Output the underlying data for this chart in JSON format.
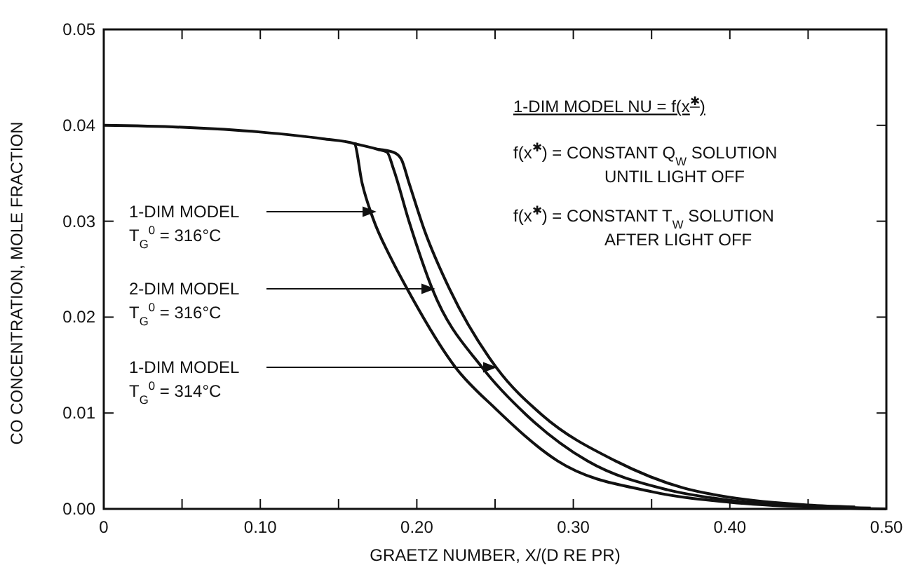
{
  "chart_data": {
    "type": "line",
    "xlabel": "GRAETZ NUMBER, X/(D RE PR)",
    "ylabel": "CO CONCENTRATION, MOLE FRACTION",
    "xlim": [
      0,
      0.5
    ],
    "ylim": [
      0,
      0.05
    ],
    "xticks": [
      {
        "value": 0,
        "label": "0"
      },
      {
        "value": 0.05,
        "label": null
      },
      {
        "value": 0.1,
        "label": "0.10"
      },
      {
        "value": 0.15,
        "label": null
      },
      {
        "value": 0.2,
        "label": "0.20"
      },
      {
        "value": 0.25,
        "label": null
      },
      {
        "value": 0.3,
        "label": "0.30"
      },
      {
        "value": 0.35,
        "label": null
      },
      {
        "value": 0.4,
        "label": "0.40"
      },
      {
        "value": 0.45,
        "label": null
      },
      {
        "value": 0.5,
        "label": "0.50"
      }
    ],
    "yticks": [
      {
        "value": 0,
        "label": "0.00"
      },
      {
        "value": 0.01,
        "label": "0.01"
      },
      {
        "value": 0.02,
        "label": "0.02"
      },
      {
        "value": 0.03,
        "label": "0.03"
      },
      {
        "value": 0.04,
        "label": "0.04"
      },
      {
        "value": 0.05,
        "label": "0.05"
      }
    ],
    "grid": false,
    "marker": "none",
    "line_style": "solid",
    "series": [
      {
        "color": "#111111",
        "x": [
          0,
          0.05,
          0.1,
          0.14,
          0.16,
          0.165,
          0.172,
          0.183,
          0.194,
          0.225,
          0.25,
          0.29,
          0.35,
          0.4,
          0.45,
          0.5
        ],
        "values": [
          0.04,
          0.0398,
          0.0393,
          0.0386,
          0.0381,
          0.034,
          0.0303,
          0.0263,
          0.0229,
          0.0147,
          0.0105,
          0.005,
          0.0018,
          0.0007,
          0.0002,
          0
        ]
      },
      {
        "color": "#111111",
        "x": [
          0.16,
          0.175,
          0.181,
          0.185,
          0.195,
          0.21,
          0.242,
          0.27,
          0.309,
          0.36,
          0.4,
          0.45,
          0.49
        ],
        "values": [
          0.0381,
          0.0375,
          0.0372,
          0.0355,
          0.03,
          0.0229,
          0.0147,
          0.0098,
          0.005,
          0.002,
          0.0009,
          0.0003,
          0.0001
        ]
      },
      {
        "color": "#111111",
        "x": [
          0.175,
          0.185,
          0.19,
          0.195,
          0.205,
          0.221,
          0.251,
          0.28,
          0.327,
          0.37,
          0.4,
          0.45,
          0.48
        ],
        "values": [
          0.0375,
          0.0372,
          0.0365,
          0.034,
          0.029,
          0.0229,
          0.0147,
          0.0098,
          0.005,
          0.0022,
          0.0012,
          0.0004,
          0.0002
        ]
      }
    ],
    "annotations": [
      "1-DIM MODEL\nT$_{G}$$^{0}$ = 316°C",
      "2-DIM MODEL\nT$_{G}$$^{0}$ = 316°C",
      "1-DIM MODEL\nT$_{G}$$^{0}$ = 314°C",
      "1-DIM MODEL NU = f(x$^{✱}$)",
      "f(x$^{✱}$) = CONSTANT Q$_{W}$ SOLUTION\nUNTIL LIGHT OFF",
      "f(x$^{✱}$) = CONSTANT T$_{W}$ SOLUTION\nAFTER LIGHT OFF"
    ]
  }
}
